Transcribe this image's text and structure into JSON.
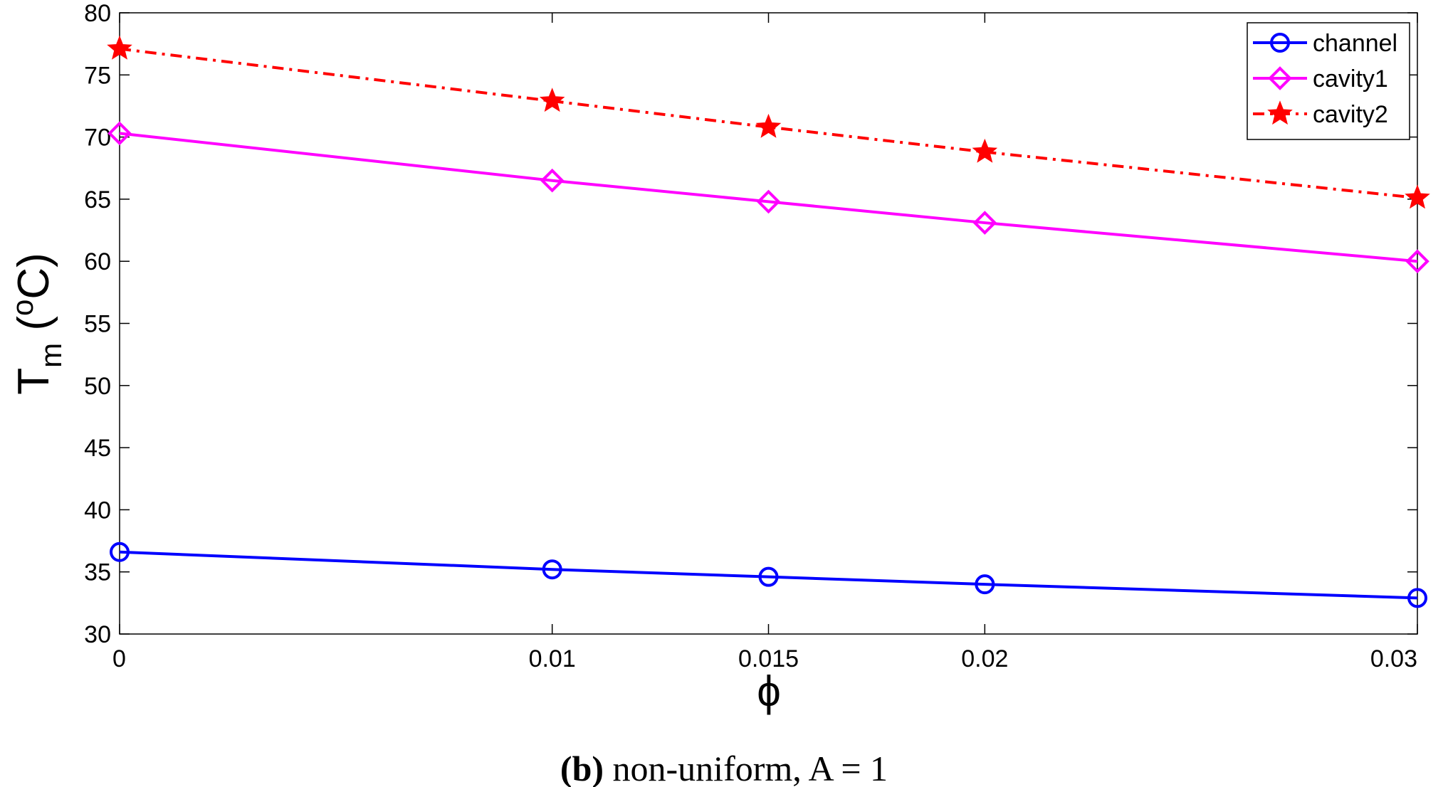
{
  "chart_data": {
    "type": "line",
    "title": "",
    "xlabel": "ϕ",
    "ylabel": {
      "base": "T",
      "subscript": "m",
      "unit_open": " (",
      "unit_sup": "o",
      "unit_rest": "C)"
    },
    "x": [
      0,
      0.01,
      0.015,
      0.02,
      0.03
    ],
    "x_tick_labels": [
      "0",
      "0.01",
      "0.015",
      "0.02",
      "0.03"
    ],
    "y_ticks": [
      30,
      35,
      40,
      45,
      50,
      55,
      60,
      65,
      70,
      75,
      80
    ],
    "xlim": [
      0,
      0.03
    ],
    "ylim": [
      30,
      80
    ],
    "grid": false,
    "legend_position": "top-right",
    "series": [
      {
        "name": "channel",
        "values": [
          36.6,
          35.2,
          34.6,
          34.0,
          32.9
        ],
        "color": "#0000ff",
        "marker": "circle",
        "dash": "solid"
      },
      {
        "name": "cavity1",
        "values": [
          70.3,
          66.5,
          64.8,
          63.1,
          60.0
        ],
        "color": "#ff00ff",
        "marker": "diamond",
        "dash": "solid"
      },
      {
        "name": "cavity2",
        "values": [
          77.1,
          72.9,
          70.8,
          68.8,
          65.1
        ],
        "color": "#ff0000",
        "marker": "star",
        "dash": "dashdot"
      }
    ]
  },
  "caption": {
    "label": "(b)",
    "text": " non-uniform, A = 1"
  }
}
